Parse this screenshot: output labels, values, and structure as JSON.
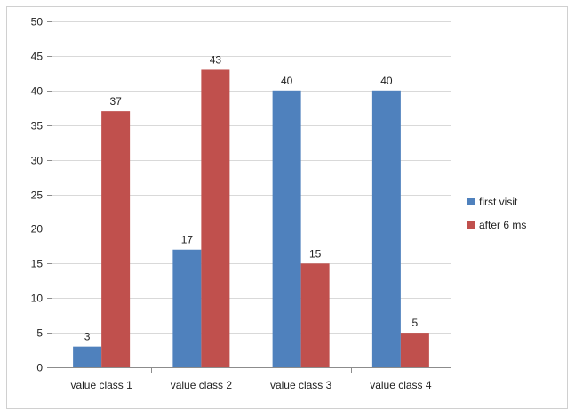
{
  "chart_data": {
    "type": "bar",
    "categories": [
      "value class 1",
      "value class 2",
      "value class 3",
      "value class 4"
    ],
    "series": [
      {
        "name": "first visit",
        "values": [
          3,
          17,
          40,
          40
        ],
        "color": "#4f81bd"
      },
      {
        "name": "after 6 ms",
        "values": [
          37,
          43,
          15,
          5
        ],
        "color": "#c0504d"
      }
    ],
    "y_ticks": [
      0,
      5,
      10,
      15,
      20,
      25,
      30,
      35,
      40,
      45,
      50
    ],
    "ylim": [
      0,
      50
    ],
    "grid": true,
    "legend_position": "right"
  }
}
